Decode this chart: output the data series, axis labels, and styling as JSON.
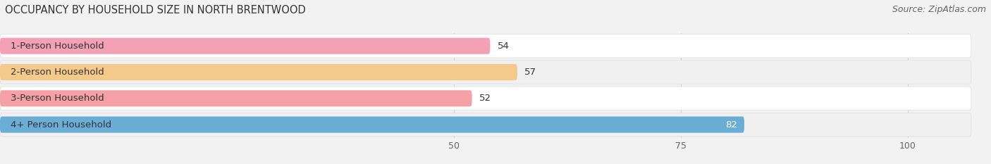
{
  "title": "OCCUPANCY BY HOUSEHOLD SIZE IN NORTH BRENTWOOD",
  "source": "Source: ZipAtlas.com",
  "categories": [
    "1-Person Household",
    "2-Person Household",
    "3-Person Household",
    "4+ Person Household"
  ],
  "values": [
    54,
    57,
    52,
    82
  ],
  "bar_colors": [
    "#f4a0b5",
    "#f5c98a",
    "#f4a0a5",
    "#6aaed6"
  ],
  "bar_label_colors": [
    "#444444",
    "#444444",
    "#444444",
    "#ffffff"
  ],
  "xlim": [
    0,
    107
  ],
  "xticks": [
    50,
    75,
    100
  ],
  "background_color": "#f2f2f2",
  "row_bg_colors": [
    "#ffffff",
    "#efefef",
    "#ffffff",
    "#5b9bd5"
  ],
  "title_fontsize": 10.5,
  "source_fontsize": 9,
  "label_fontsize": 9.5,
  "value_fontsize": 9.5,
  "tick_fontsize": 9,
  "bar_height": 0.62
}
